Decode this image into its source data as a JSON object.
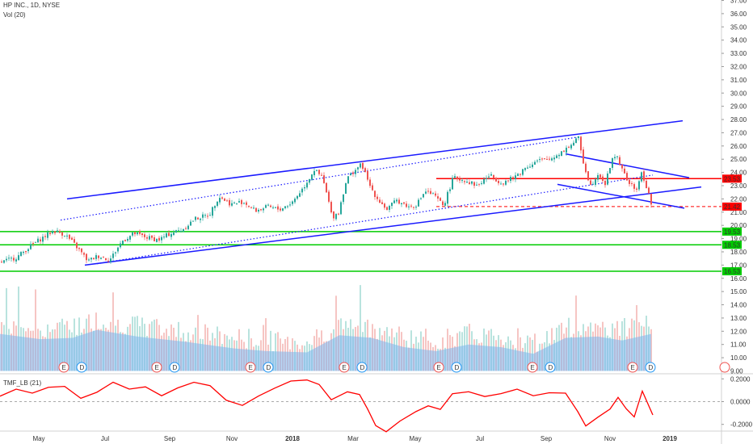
{
  "header": {
    "symbol_line": "HP INC., 1D, NYSE",
    "volume_line": "Vol (20)"
  },
  "tmf": {
    "label": "TMF_LB (21)",
    "ticks": [
      "0.2000",
      "0.0000",
      "-0.2000"
    ]
  },
  "earnings_badges": {
    "e_label": "E",
    "d_label": "D"
  },
  "colors": {
    "up": "#26a69a",
    "down": "#ef5350",
    "trendline": "#1a1aff",
    "support": "#00cc00",
    "resistance": "#ff0000",
    "volume": "#7cb5ec",
    "tmf_line": "#ff0000"
  },
  "chart_data": {
    "type": "candlestick",
    "title": "HP INC., 1D, NYSE",
    "x_ticks": [
      "May",
      "Jul",
      "Sep",
      "Nov",
      "2018",
      "Mar",
      "May",
      "Jul",
      "Sep",
      "Nov",
      "2019"
    ],
    "y_ticks": [
      "37.00",
      "36.00",
      "35.00",
      "34.00",
      "33.00",
      "32.00",
      "31.00",
      "30.00",
      "29.00",
      "28.00",
      "27.00",
      "26.00",
      "25.00",
      "24.00",
      "23.00",
      "22.00",
      "21.00",
      "20.00",
      "19.00",
      "18.00",
      "17.00",
      "16.00",
      "15.00",
      "14.00",
      "13.00",
      "12.00",
      "11.00",
      "10.00",
      "9.00"
    ],
    "ylim": [
      8.5,
      37.2
    ],
    "price_path": [
      {
        "x": 0,
        "y": 17.2
      },
      {
        "x": 20,
        "y": 17.6
      },
      {
        "x": 40,
        "y": 18.6
      },
      {
        "x": 55,
        "y": 19.2
      },
      {
        "x": 65,
        "y": 19.6
      },
      {
        "x": 80,
        "y": 19.3
      },
      {
        "x": 95,
        "y": 18.3
      },
      {
        "x": 108,
        "y": 17.3
      },
      {
        "x": 120,
        "y": 17.7
      },
      {
        "x": 135,
        "y": 17.4
      },
      {
        "x": 150,
        "y": 18.8
      },
      {
        "x": 165,
        "y": 19.4
      },
      {
        "x": 180,
        "y": 19.1
      },
      {
        "x": 195,
        "y": 18.9
      },
      {
        "x": 210,
        "y": 19.4
      },
      {
        "x": 225,
        "y": 19.7
      },
      {
        "x": 240,
        "y": 20.5
      },
      {
        "x": 258,
        "y": 20.8
      },
      {
        "x": 270,
        "y": 22.2
      },
      {
        "x": 285,
        "y": 21.6
      },
      {
        "x": 300,
        "y": 21.8
      },
      {
        "x": 315,
        "y": 21.1
      },
      {
        "x": 330,
        "y": 21.4
      },
      {
        "x": 345,
        "y": 21.2
      },
      {
        "x": 360,
        "y": 21.7
      },
      {
        "x": 375,
        "y": 22.9
      },
      {
        "x": 388,
        "y": 24.2
      },
      {
        "x": 398,
        "y": 23.6
      },
      {
        "x": 405,
        "y": 22.0
      },
      {
        "x": 410,
        "y": 20.6
      },
      {
        "x": 418,
        "y": 21.0
      },
      {
        "x": 428,
        "y": 23.5
      },
      {
        "x": 440,
        "y": 24.3
      },
      {
        "x": 447,
        "y": 24.6
      },
      {
        "x": 455,
        "y": 23.2
      },
      {
        "x": 465,
        "y": 22.1
      },
      {
        "x": 478,
        "y": 21.2
      },
      {
        "x": 490,
        "y": 21.9
      },
      {
        "x": 505,
        "y": 21.4
      },
      {
        "x": 515,
        "y": 21.6
      },
      {
        "x": 525,
        "y": 22.6
      },
      {
        "x": 535,
        "y": 22.3
      },
      {
        "x": 548,
        "y": 21.5
      },
      {
        "x": 560,
        "y": 23.6
      },
      {
        "x": 575,
        "y": 23.4
      },
      {
        "x": 590,
        "y": 23.0
      },
      {
        "x": 605,
        "y": 23.8
      },
      {
        "x": 620,
        "y": 23.2
      },
      {
        "x": 635,
        "y": 23.6
      },
      {
        "x": 650,
        "y": 24.4
      },
      {
        "x": 665,
        "y": 24.9
      },
      {
        "x": 680,
        "y": 25.0
      },
      {
        "x": 695,
        "y": 25.6
      },
      {
        "x": 708,
        "y": 26.2
      },
      {
        "x": 715,
        "y": 26.6
      },
      {
        "x": 722,
        "y": 24.5
      },
      {
        "x": 730,
        "y": 23.0
      },
      {
        "x": 740,
        "y": 24.0
      },
      {
        "x": 748,
        "y": 23.1
      },
      {
        "x": 756,
        "y": 24.9
      },
      {
        "x": 762,
        "y": 25.4
      },
      {
        "x": 770,
        "y": 24.0
      },
      {
        "x": 778,
        "y": 23.2
      },
      {
        "x": 786,
        "y": 22.6
      },
      {
        "x": 793,
        "y": 23.9
      },
      {
        "x": 800,
        "y": 22.8
      },
      {
        "x": 806,
        "y": 21.4
      }
    ],
    "trend_lines": [
      {
        "name": "upper-channel",
        "x1": 83,
        "y1": 22.0,
        "x2": 845,
        "y2": 27.9
      },
      {
        "name": "lower-channel",
        "x1": 105,
        "y1": 17.0,
        "x2": 868,
        "y2": 22.9
      },
      {
        "name": "wedge-top",
        "x1": 700,
        "y1": 25.4,
        "x2": 853,
        "y2": 23.6
      },
      {
        "name": "wedge-bottom",
        "x1": 690,
        "y1": 23.1,
        "x2": 847,
        "y2": 21.3
      }
    ],
    "dotted_lines": [
      {
        "name": "upper-dotted",
        "x1": 75,
        "y1": 20.4,
        "x2": 718,
        "y2": 26.7
      },
      {
        "name": "lower-dotted",
        "x1": 120,
        "y1": 17.1,
        "x2": 808,
        "y2": 23.8
      }
    ],
    "levels": [
      {
        "value": 19.53,
        "label": "19.53",
        "kind": "support"
      },
      {
        "value": 18.53,
        "label": "18.53",
        "kind": "support"
      },
      {
        "value": 16.53,
        "label": "16.53",
        "kind": "support"
      },
      {
        "value": 23.53,
        "label": "23.53",
        "kind": "resistance"
      },
      {
        "value": 21.42,
        "label": "21.42",
        "kind": "last-price"
      }
    ],
    "volume_curve": [
      {
        "x": 0,
        "v": 11.8
      },
      {
        "x": 50,
        "v": 11.4
      },
      {
        "x": 90,
        "v": 11.5
      },
      {
        "x": 120,
        "v": 12.1
      },
      {
        "x": 170,
        "v": 11.6
      },
      {
        "x": 230,
        "v": 11.2
      },
      {
        "x": 290,
        "v": 10.7
      },
      {
        "x": 330,
        "v": 10.5
      },
      {
        "x": 380,
        "v": 10.4
      },
      {
        "x": 420,
        "v": 11.7
      },
      {
        "x": 460,
        "v": 11.5
      },
      {
        "x": 500,
        "v": 10.8
      },
      {
        "x": 540,
        "v": 10.5
      },
      {
        "x": 580,
        "v": 11.0
      },
      {
        "x": 620,
        "v": 10.8
      },
      {
        "x": 660,
        "v": 10.3
      },
      {
        "x": 700,
        "v": 11.5
      },
      {
        "x": 740,
        "v": 11.6
      },
      {
        "x": 770,
        "v": 11.3
      },
      {
        "x": 806,
        "v": 11.8
      }
    ],
    "earnings_positions": [
      92,
      207,
      323,
      439,
      556,
      672,
      796
    ],
    "tmf_series": [
      {
        "x": 0,
        "y": 0.05
      },
      {
        "x": 20,
        "y": 0.1
      },
      {
        "x": 40,
        "y": 0.06
      },
      {
        "x": 60,
        "y": 0.14
      },
      {
        "x": 80,
        "y": 0.12
      },
      {
        "x": 100,
        "y": 0.02
      },
      {
        "x": 120,
        "y": 0.08
      },
      {
        "x": 140,
        "y": 0.16
      },
      {
        "x": 160,
        "y": 0.1
      },
      {
        "x": 180,
        "y": 0.13
      },
      {
        "x": 200,
        "y": 0.04
      },
      {
        "x": 220,
        "y": 0.12
      },
      {
        "x": 240,
        "y": 0.18
      },
      {
        "x": 260,
        "y": 0.14
      },
      {
        "x": 280,
        "y": 0.02
      },
      {
        "x": 300,
        "y": -0.02
      },
      {
        "x": 320,
        "y": 0.06
      },
      {
        "x": 340,
        "y": 0.12
      },
      {
        "x": 360,
        "y": 0.18
      },
      {
        "x": 380,
        "y": 0.2
      },
      {
        "x": 395,
        "y": 0.15
      },
      {
        "x": 410,
        "y": 0.03
      },
      {
        "x": 430,
        "y": 0.1
      },
      {
        "x": 445,
        "y": 0.05
      },
      {
        "x": 455,
        "y": -0.08
      },
      {
        "x": 465,
        "y": -0.2
      },
      {
        "x": 478,
        "y": -0.25
      },
      {
        "x": 495,
        "y": -0.18
      },
      {
        "x": 515,
        "y": -0.1
      },
      {
        "x": 530,
        "y": -0.03
      },
      {
        "x": 545,
        "y": -0.08
      },
      {
        "x": 560,
        "y": 0.06
      },
      {
        "x": 580,
        "y": 0.1
      },
      {
        "x": 600,
        "y": 0.04
      },
      {
        "x": 620,
        "y": 0.08
      },
      {
        "x": 640,
        "y": 0.1
      },
      {
        "x": 660,
        "y": 0.05
      },
      {
        "x": 680,
        "y": 0.08
      },
      {
        "x": 700,
        "y": 0.06
      },
      {
        "x": 715,
        "y": -0.1
      },
      {
        "x": 725,
        "y": -0.2
      },
      {
        "x": 740,
        "y": -0.15
      },
      {
        "x": 755,
        "y": -0.06
      },
      {
        "x": 765,
        "y": 0.04
      },
      {
        "x": 775,
        "y": -0.05
      },
      {
        "x": 785,
        "y": -0.12
      },
      {
        "x": 795,
        "y": 0.08
      },
      {
        "x": 808,
        "y": -0.13
      }
    ],
    "grid": false
  }
}
